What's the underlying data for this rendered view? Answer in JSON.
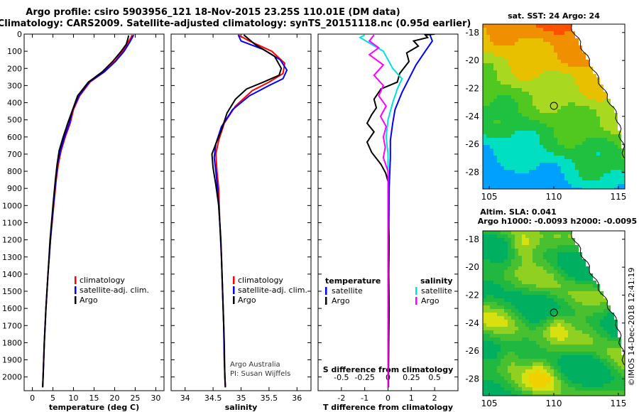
{
  "header": {
    "title_line1": "Argo profile: csiro 5903956_121 18-Nov-2015 23.25S 110.01E (DM data)",
    "title_line2": "Climatology: CARS2009. Satellite-adjusted climatology: synTS_20151118.nc (0.95d earlier)"
  },
  "chart_data": [
    {
      "type": "line",
      "id": "temperature_profile",
      "xlabel": "temperature (deg C)",
      "ylabel": "",
      "xlim": [
        -2,
        32
      ],
      "ylim": [
        2080,
        0
      ],
      "xticks": [
        0,
        5,
        10,
        15,
        20,
        25,
        30
      ],
      "xticklabels": [
        "0",
        "5",
        "10",
        "15",
        "20",
        "25",
        "30"
      ],
      "yticks": [
        0,
        100,
        200,
        300,
        400,
        500,
        600,
        700,
        800,
        900,
        1000,
        1100,
        1200,
        1300,
        1400,
        1500,
        1600,
        1700,
        1800,
        1900,
        2000
      ],
      "yticklabels": [
        "0",
        "100",
        "200",
        "300",
        "400",
        "500",
        "600",
        "700",
        "800",
        "900",
        "1000",
        "1100",
        "1200",
        "1300",
        "1400",
        "1500",
        "1600",
        "1700",
        "1800",
        "1900",
        "2000"
      ],
      "legend": [
        "climatology",
        "satellite-adj. clim.",
        "Argo"
      ],
      "legend_colors": [
        "#ff0000",
        "#0000ff",
        "#000000"
      ],
      "series": [
        {
          "name": "climatology",
          "color": "#ff0000",
          "points": [
            [
              24.2,
              5
            ],
            [
              24.0,
              20
            ],
            [
              23.2,
              50
            ],
            [
              22.0,
              100
            ],
            [
              20.0,
              160
            ],
            [
              17.5,
              220
            ],
            [
              14.0,
              280
            ],
            [
              11.5,
              360
            ],
            [
              10.0,
              440
            ],
            [
              9.2,
              520
            ],
            [
              8.0,
              600
            ],
            [
              7.0,
              680
            ],
            [
              6.3,
              760
            ],
            [
              5.8,
              850
            ],
            [
              5.2,
              1000
            ],
            [
              4.4,
              1200
            ],
            [
              3.8,
              1400
            ],
            [
              3.3,
              1600
            ],
            [
              2.9,
              1800
            ],
            [
              2.6,
              2000
            ],
            [
              2.5,
              2060
            ]
          ]
        },
        {
          "name": "satellite-adj. clim.",
          "color": "#0000ff",
          "points": [
            [
              24.6,
              5
            ],
            [
              24.3,
              20
            ],
            [
              23.6,
              50
            ],
            [
              22.3,
              100
            ],
            [
              20.2,
              160
            ],
            [
              17.5,
              220
            ],
            [
              13.8,
              280
            ],
            [
              11.3,
              360
            ],
            [
              9.8,
              440
            ],
            [
              9.0,
              520
            ],
            [
              7.8,
              600
            ],
            [
              6.8,
              680
            ],
            [
              6.1,
              760
            ],
            [
              5.7,
              850
            ],
            [
              5.1,
              1000
            ],
            [
              4.4,
              1200
            ],
            [
              3.8,
              1400
            ],
            [
              3.3,
              1600
            ],
            [
              2.9,
              1800
            ],
            [
              2.6,
              2000
            ],
            [
              2.5,
              2060
            ]
          ]
        },
        {
          "name": "Argo",
          "color": "#000000",
          "points": [
            [
              23.4,
              8
            ],
            [
              23.2,
              30
            ],
            [
              22.8,
              60
            ],
            [
              21.6,
              100
            ],
            [
              19.5,
              160
            ],
            [
              17.0,
              220
            ],
            [
              13.6,
              280
            ],
            [
              11.0,
              360
            ],
            [
              9.8,
              440
            ],
            [
              8.6,
              520
            ],
            [
              7.5,
              600
            ],
            [
              6.5,
              680
            ],
            [
              6.0,
              760
            ],
            [
              5.6,
              850
            ],
            [
              5.0,
              1000
            ],
            [
              4.3,
              1200
            ],
            [
              3.8,
              1400
            ],
            [
              3.3,
              1600
            ],
            [
              2.9,
              1800
            ],
            [
              2.6,
              2000
            ],
            [
              2.5,
              2060
            ]
          ]
        }
      ]
    },
    {
      "type": "line",
      "id": "salinity_profile",
      "xlabel": "salinity",
      "ylabel": "",
      "xlim": [
        33.75,
        36.25
      ],
      "ylim": [
        2080,
        0
      ],
      "xticks": [
        34,
        34.5,
        35,
        35.5,
        36
      ],
      "xticklabels": [
        "34",
        "34.5",
        "35",
        "35.5",
        "36"
      ],
      "legend": [
        "climatology",
        "satellite-adj. clim.",
        "Argo"
      ],
      "legend_colors": [
        "#ff0000",
        "#0000ff",
        "#000000"
      ],
      "annotation": [
        "Argo Australia",
        "PI: Susan Wijffels"
      ],
      "series": [
        {
          "name": "climatology",
          "color": "#ff0000",
          "points": [
            [
              34.95,
              5
            ],
            [
              35.15,
              40
            ],
            [
              35.55,
              100
            ],
            [
              35.78,
              170
            ],
            [
              35.75,
              230
            ],
            [
              35.5,
              280
            ],
            [
              35.2,
              330
            ],
            [
              34.9,
              420
            ],
            [
              34.7,
              520
            ],
            [
              34.6,
              620
            ],
            [
              34.55,
              700
            ],
            [
              34.57,
              800
            ],
            [
              34.6,
              900
            ],
            [
              34.62,
              1100
            ],
            [
              34.65,
              1300
            ],
            [
              34.67,
              1500
            ],
            [
              34.69,
              1700
            ],
            [
              34.7,
              1900
            ],
            [
              34.72,
              2060
            ]
          ]
        },
        {
          "name": "satellite-adj. clim.",
          "color": "#0000ff",
          "points": [
            [
              34.95,
              5
            ],
            [
              35.0,
              40
            ],
            [
              35.4,
              90
            ],
            [
              35.7,
              150
            ],
            [
              35.82,
              210
            ],
            [
              35.75,
              260
            ],
            [
              35.5,
              300
            ],
            [
              35.15,
              360
            ],
            [
              34.85,
              440
            ],
            [
              34.65,
              540
            ],
            [
              34.55,
              640
            ],
            [
              34.52,
              720
            ],
            [
              34.55,
              800
            ],
            [
              34.58,
              900
            ],
            [
              34.62,
              1100
            ],
            [
              34.65,
              1300
            ],
            [
              34.67,
              1500
            ],
            [
              34.69,
              1700
            ],
            [
              34.7,
              1900
            ],
            [
              34.72,
              2060
            ]
          ]
        },
        {
          "name": "Argo",
          "color": "#000000",
          "points": [
            [
              35.05,
              5
            ],
            [
              35.25,
              60
            ],
            [
              35.6,
              130
            ],
            [
              35.72,
              200
            ],
            [
              35.68,
              240
            ],
            [
              35.4,
              280
            ],
            [
              35.1,
              320
            ],
            [
              34.9,
              380
            ],
            [
              34.75,
              460
            ],
            [
              34.65,
              560
            ],
            [
              34.55,
              640
            ],
            [
              34.48,
              700
            ],
            [
              34.5,
              780
            ],
            [
              34.55,
              880
            ],
            [
              34.6,
              1000
            ],
            [
              34.64,
              1200
            ],
            [
              34.66,
              1400
            ],
            [
              34.68,
              1600
            ],
            [
              34.7,
              1800
            ],
            [
              34.71,
              2000
            ],
            [
              34.72,
              2060
            ]
          ]
        }
      ]
    },
    {
      "type": "line",
      "id": "difference_profile",
      "xlabel": "T difference from climatology",
      "xlabel2": "S difference from climatology",
      "xlim": [
        -3,
        3
      ],
      "ylim": [
        2080,
        0
      ],
      "xticks": [
        -2,
        -1,
        0,
        1,
        2
      ],
      "xticklabels": [
        "-2",
        "-1",
        "0",
        "1",
        "2"
      ],
      "sticks": [
        -0.5,
        -0.25,
        0,
        0.25,
        0.5
      ],
      "sticklabels": [
        "-0.5",
        "-0.25",
        "0",
        "0.25",
        "0.5"
      ],
      "legend_t_title": "temperature",
      "legend_t": [
        "satellite",
        "Argo"
      ],
      "legend_t_colors": [
        "#0000ff",
        "#000000"
      ],
      "legend_s_title": "salinity",
      "legend_s": [
        "satellite",
        "Argo"
      ],
      "legend_s_colors": [
        "#00e0e0",
        "#ff00ff"
      ],
      "series": [
        {
          "name": "T satellite",
          "color": "#0000ff",
          "points": [
            [
              1.8,
              5
            ],
            [
              1.9,
              40
            ],
            [
              1.6,
              100
            ],
            [
              1.2,
              180
            ],
            [
              0.9,
              260
            ],
            [
              0.6,
              340
            ],
            [
              0.3,
              440
            ],
            [
              0.2,
              520
            ],
            [
              0.1,
              620
            ],
            [
              0.1,
              720
            ],
            [
              0.05,
              900
            ],
            [
              0.03,
              1200
            ],
            [
              0.02,
              1600
            ],
            [
              0.01,
              2000
            ],
            [
              0.0,
              2060
            ]
          ]
        },
        {
          "name": "T Argo",
          "color": "#000000",
          "points": [
            [
              2.0,
              0
            ],
            [
              1.6,
              5
            ],
            [
              1.7,
              20
            ],
            [
              1.1,
              40
            ],
            [
              1.3,
              70
            ],
            [
              0.8,
              110
            ],
            [
              0.9,
              160
            ],
            [
              0.5,
              230
            ],
            [
              0.4,
              280
            ],
            [
              -0.3,
              320
            ],
            [
              -0.6,
              380
            ],
            [
              -0.5,
              430
            ],
            [
              -0.7,
              470
            ],
            [
              -0.9,
              520
            ],
            [
              -0.6,
              570
            ],
            [
              -0.9,
              630
            ],
            [
              -0.7,
              690
            ],
            [
              -0.3,
              760
            ],
            [
              -0.1,
              810
            ],
            [
              0.0,
              860
            ],
            [
              0.0,
              900
            ],
            [
              0.0,
              1000
            ],
            [
              0.05,
              1200
            ],
            [
              0.03,
              1400
            ],
            [
              0.05,
              1600
            ],
            [
              0.03,
              1800
            ],
            [
              0.02,
              2000
            ],
            [
              0.02,
              2060
            ]
          ]
        },
        {
          "name": "S satellite",
          "color": "#00e0e0",
          "points": [
            [
              -0.25,
              5
            ],
            [
              -0.3,
              20
            ],
            [
              -0.05,
              100
            ],
            [
              0.05,
              200
            ],
            [
              0.15,
              260
            ],
            [
              0.1,
              320
            ],
            [
              0.05,
              400
            ],
            [
              0.0,
              500
            ],
            [
              -0.02,
              600
            ],
            [
              0.0,
              700
            ],
            [
              0.0,
              900
            ],
            [
              0.0,
              1200
            ],
            [
              0.0,
              1600
            ],
            [
              0.0,
              2060
            ]
          ]
        },
        {
          "name": "S Argo",
          "color": "#ff00ff",
          "points": [
            [
              -0.15,
              5
            ],
            [
              -0.2,
              40
            ],
            [
              -0.1,
              80
            ],
            [
              -0.2,
              120
            ],
            [
              -0.05,
              180
            ],
            [
              -0.15,
              240
            ],
            [
              -0.05,
              300
            ],
            [
              -0.1,
              360
            ],
            [
              -0.02,
              420
            ],
            [
              -0.08,
              480
            ],
            [
              -0.02,
              540
            ],
            [
              -0.05,
              600
            ],
            [
              -0.03,
              660
            ],
            [
              -0.05,
              720
            ],
            [
              0.0,
              800
            ],
            [
              0.0,
              1000
            ],
            [
              0.0,
              1300
            ],
            [
              0.0,
              1700
            ],
            [
              0.0,
              2060
            ]
          ]
        }
      ]
    },
    {
      "type": "heatmap",
      "id": "sst_map",
      "title": "sat. SST: 24 Argo: 24",
      "xlim": [
        104.5,
        115.5
      ],
      "ylim": [
        -29.2,
        -17.4
      ],
      "xticks": [
        105,
        110,
        115
      ],
      "xticklabels": [
        "105",
        "110",
        "115"
      ],
      "yticks": [
        -18,
        -20,
        -22,
        -24,
        -26,
        -28
      ],
      "yticklabels": [
        "-18",
        "-20",
        "-22",
        "-24",
        "-26",
        "-28"
      ],
      "marker": [
        110.01,
        -23.25
      ]
    },
    {
      "type": "heatmap",
      "id": "sla_map",
      "title": "Altim. SLA: 0.041",
      "subtitle": "Argo h1000: -0.0093 h2000: -0.0095",
      "xlim": [
        104.5,
        115.5
      ],
      "ylim": [
        -29.2,
        -17.4
      ],
      "xticks": [
        105,
        110,
        115
      ],
      "xticklabels": [
        "105",
        "110",
        "115"
      ],
      "yticks": [
        -18,
        -20,
        -22,
        -24,
        -26,
        -28
      ],
      "yticklabels": [
        "-18",
        "-20",
        "-22",
        "-24",
        "-26",
        "-28"
      ],
      "marker": [
        110.01,
        -23.25
      ]
    }
  ],
  "footer": {
    "watermark": "©IMOS 14-Dec-2018 12:41:19"
  }
}
